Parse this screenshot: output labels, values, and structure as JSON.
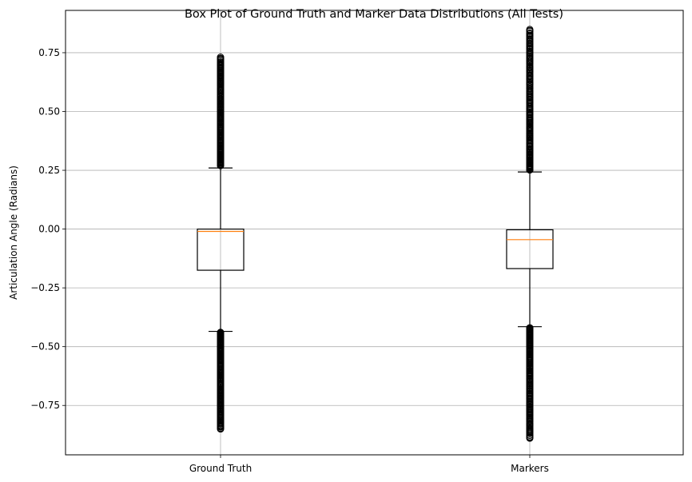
{
  "chart_data": {
    "type": "box",
    "title": "Box Plot of Ground Truth and Marker Data Distributions (All Tests)",
    "xlabel": "",
    "ylabel": "Articulation Angle (Radians)",
    "categories": [
      "Ground Truth",
      "Markers"
    ],
    "ylim": [
      -0.96,
      0.93
    ],
    "yticks": [
      -0.75,
      -0.5,
      -0.25,
      0.0,
      0.25,
      0.5,
      0.75
    ],
    "ytick_labels": [
      "−0.75",
      "−0.50",
      "−0.25",
      "0.00",
      "0.25",
      "0.50",
      "0.75"
    ],
    "grid": true,
    "boxes": [
      {
        "label": "Ground Truth",
        "whisker_low": -0.435,
        "q1": -0.175,
        "median": -0.01,
        "q3": 0.0,
        "whisker_high": 0.26,
        "outliers_high_range": [
          0.27,
          0.73
        ],
        "outliers_low_range": [
          -0.85,
          -0.44
        ]
      },
      {
        "label": "Markers",
        "whisker_low": -0.415,
        "q1": -0.168,
        "median": -0.045,
        "q3": -0.003,
        "whisker_high": 0.243,
        "outliers_high_range": [
          0.25,
          0.85
        ],
        "outliers_low_range": [
          -0.89,
          -0.42
        ]
      }
    ],
    "colors": {
      "box": "#000000",
      "median": "#ff7f0e",
      "grid": "#b0b0b0"
    }
  }
}
